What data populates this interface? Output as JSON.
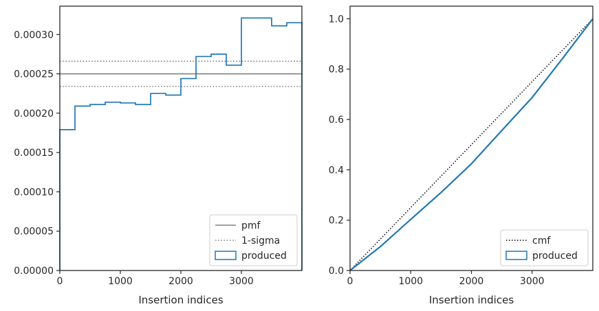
{
  "colors": {
    "produced": "#1f77b4",
    "pmf": "#808080",
    "sigma": "#808080",
    "cmf": "#000000",
    "axes": "#262626"
  },
  "chart_data": [
    {
      "type": "line",
      "xlabel": "Insertion indices",
      "ylabel": "",
      "xlim": [
        0,
        4000
      ],
      "ylim": [
        0,
        0.000336
      ],
      "x_ticks": [
        0,
        1000,
        2000,
        3000
      ],
      "x_tick_labels": [
        "0",
        "1000",
        "2000",
        "3000"
      ],
      "y_ticks": [
        0,
        5e-05,
        0.0001,
        0.00015,
        0.0002,
        0.00025,
        0.0003
      ],
      "y_tick_labels": [
        "0.00000",
        "0.00005",
        "0.00010",
        "0.00015",
        "0.00020",
        "0.00025",
        "0.00030"
      ],
      "grid": false,
      "legend_position": "lower-right",
      "legend": [
        "pmf",
        "1-sigma",
        "produced"
      ],
      "pmf": 0.00025,
      "sigma_band": [
        0.000234,
        0.000266
      ],
      "produced_bins": {
        "edges": [
          0,
          250,
          500,
          750,
          1000,
          1250,
          1500,
          1750,
          2000,
          2250,
          2500,
          2750,
          3000,
          3500,
          3750,
          4000
        ],
        "values": [
          0.000179,
          0.000209,
          0.000211,
          0.000214,
          0.000213,
          0.000211,
          0.000225,
          0.000223,
          0.000244,
          0.000272,
          0.000275,
          0.000261,
          0.000321,
          0.000311,
          0.000315
        ]
      }
    },
    {
      "type": "line",
      "xlabel": "Insertion indices",
      "ylabel": "",
      "xlim": [
        0,
        4000
      ],
      "ylim": [
        0,
        1.05
      ],
      "x_ticks": [
        0,
        1000,
        2000,
        3000
      ],
      "x_tick_labels": [
        "0",
        "1000",
        "2000",
        "3000"
      ],
      "y_ticks": [
        0,
        0.2,
        0.4,
        0.6,
        0.8,
        1.0
      ],
      "y_tick_labels": [
        "0.0",
        "0.2",
        "0.4",
        "0.6",
        "0.8",
        "1.0"
      ],
      "grid": false,
      "legend_position": "lower-right",
      "legend": [
        "cmf",
        "produced"
      ],
      "cmf": {
        "x": [
          0,
          4000
        ],
        "y": [
          0,
          1.0
        ]
      },
      "produced": {
        "x": [
          0,
          500,
          1000,
          1500,
          2000,
          2500,
          3000,
          3500,
          4000
        ],
        "y": [
          0,
          0.095,
          0.203,
          0.31,
          0.424,
          0.556,
          0.687,
          0.842,
          1.0
        ]
      }
    }
  ]
}
